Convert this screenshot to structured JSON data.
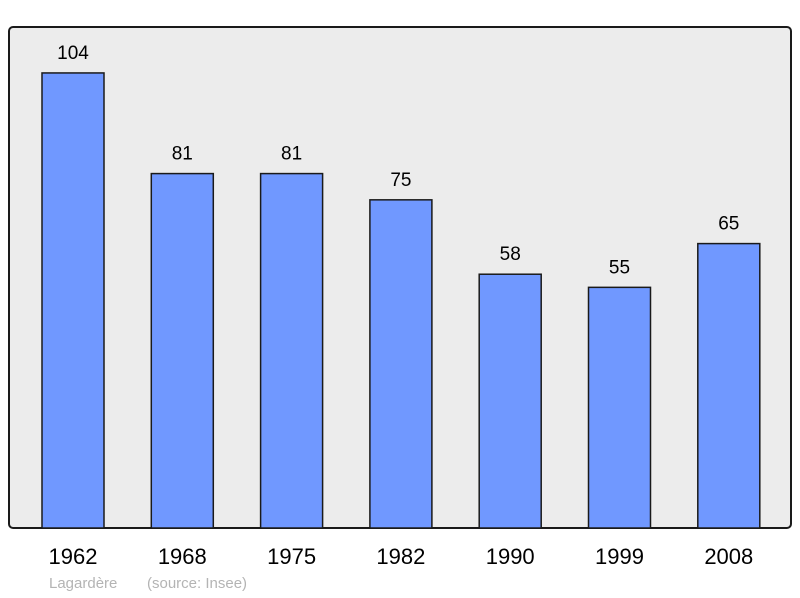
{
  "chart_data": {
    "type": "bar",
    "categories": [
      "1962",
      "1968",
      "1975",
      "1982",
      "1990",
      "1999",
      "2008"
    ],
    "values": [
      104,
      81,
      81,
      75,
      58,
      55,
      65
    ],
    "title": "",
    "xlabel": "",
    "ylabel": "",
    "ylim": [
      0,
      114.5
    ],
    "grid": false,
    "data_labels": true,
    "colors": {
      "bar": "#7098ff",
      "plot_bg": "#ececec",
      "border": "#1a1a1a"
    }
  },
  "footer": {
    "place": "Lagardère",
    "source": "(source: Insee)"
  }
}
